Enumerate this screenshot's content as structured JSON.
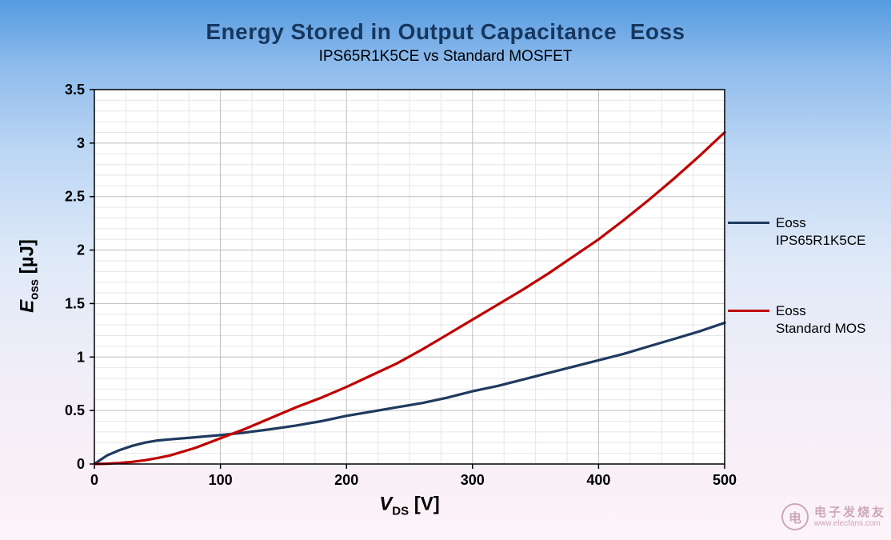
{
  "header": {
    "title": "Energy Stored in Output Capacitance  Eoss",
    "subtitle": "IPS65R1K5CE vs Standard MOSFET"
  },
  "axes": {
    "x": {
      "symbol": "V",
      "sub": "DS",
      "unit": "[V]",
      "min": 0,
      "max": 500,
      "major_step": 100,
      "minor_step": 25
    },
    "y": {
      "symbol": "E",
      "sub": "oss",
      "unit": "[µJ]",
      "min": 0,
      "max": 3.5,
      "major_step": 0.5,
      "minor_step": 0.1
    }
  },
  "legend": {
    "items": [
      {
        "line1": "Eoss",
        "line2": "IPS65R1K5CE",
        "color": "#1f3a5f"
      },
      {
        "line1": "Eoss",
        "line2": "Standard MOS",
        "color": "#c00000"
      }
    ]
  },
  "colors": {
    "plot_bg": "#ffffff",
    "grid_major": "#bfbfbf",
    "grid_minor": "#e6e6e6",
    "frame": "#000000",
    "title": "#17375e"
  },
  "watermark": {
    "brand": "电子发烧友",
    "url": "www.elecfans.com"
  },
  "chart_data": {
    "type": "line",
    "title": "Energy Stored in Output Capacitance Eoss",
    "subtitle": "IPS65R1K5CE vs Standard MOSFET",
    "xlabel": "V_DS [V]",
    "ylabel": "E_oss [µJ]",
    "xlim": [
      0,
      500
    ],
    "ylim": [
      0,
      3.5
    ],
    "grid": true,
    "legend_position": "right",
    "x": [
      0,
      10,
      20,
      30,
      40,
      50,
      60,
      80,
      100,
      120,
      140,
      160,
      180,
      200,
      220,
      240,
      260,
      280,
      300,
      320,
      340,
      360,
      380,
      400,
      420,
      440,
      460,
      480,
      500
    ],
    "series": [
      {
        "name": "Eoss IPS65R1K5CE",
        "color": "#1f3a5f",
        "values": [
          0,
          0.08,
          0.13,
          0.17,
          0.2,
          0.22,
          0.23,
          0.25,
          0.27,
          0.295,
          0.325,
          0.36,
          0.4,
          0.45,
          0.49,
          0.53,
          0.57,
          0.62,
          0.68,
          0.73,
          0.79,
          0.85,
          0.91,
          0.97,
          1.03,
          1.1,
          1.17,
          1.24,
          1.32
        ]
      },
      {
        "name": "Eoss Standard MOS",
        "color": "#c00000",
        "values": [
          0,
          0.003,
          0.01,
          0.02,
          0.035,
          0.055,
          0.08,
          0.15,
          0.24,
          0.33,
          0.43,
          0.53,
          0.62,
          0.72,
          0.83,
          0.94,
          1.07,
          1.21,
          1.35,
          1.49,
          1.63,
          1.78,
          1.94,
          2.1,
          2.28,
          2.47,
          2.67,
          2.88,
          3.1
        ]
      }
    ]
  }
}
